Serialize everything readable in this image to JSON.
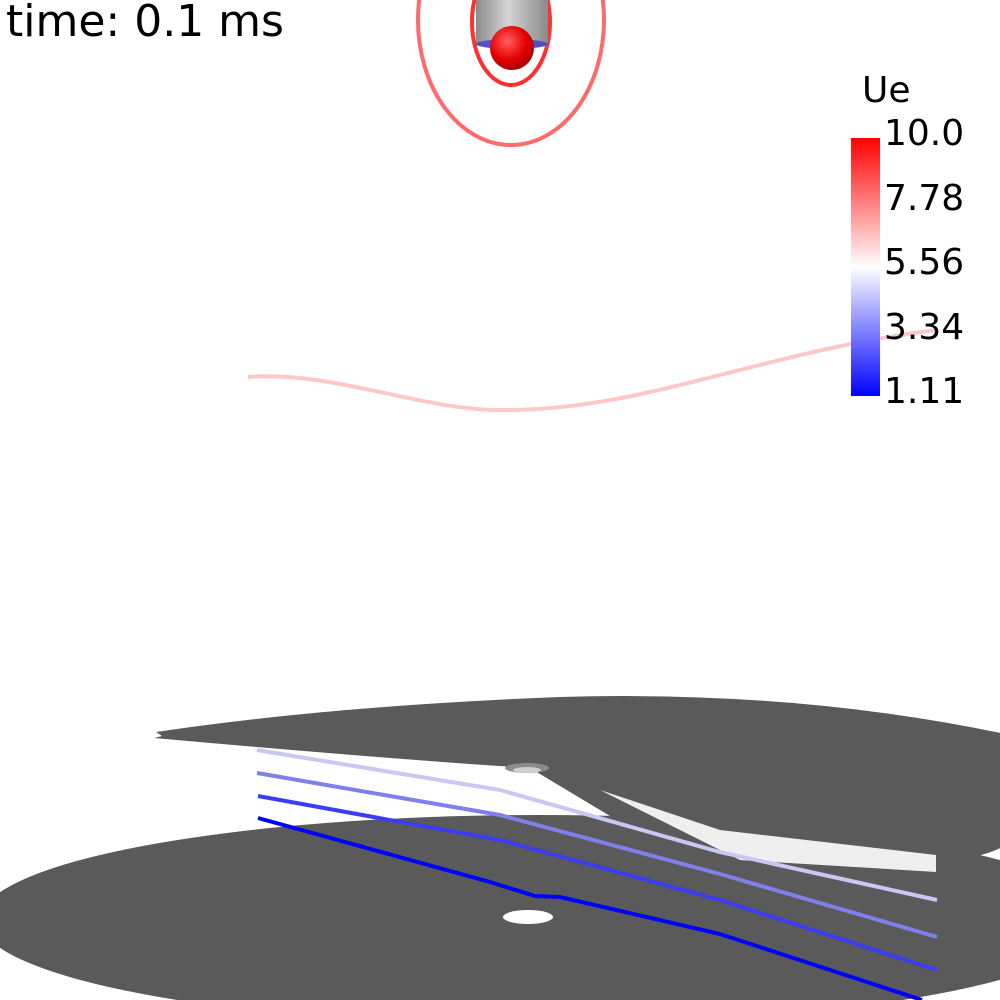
{
  "time_label": "time: 0.1 ms",
  "colorbar": {
    "title": "Ue",
    "ticks": [
      "10.0",
      "7.78",
      "5.56",
      "3.34",
      "1.11"
    ],
    "range": [
      1.11,
      10.0
    ],
    "colors": {
      "high": "#ff0000",
      "mid": "#ffffff",
      "low": "#0000ff"
    }
  },
  "colors": {
    "surface": "#5a5a5a",
    "electrode_body": "#a9a9a9",
    "electrode_tip": "#e60000"
  }
}
